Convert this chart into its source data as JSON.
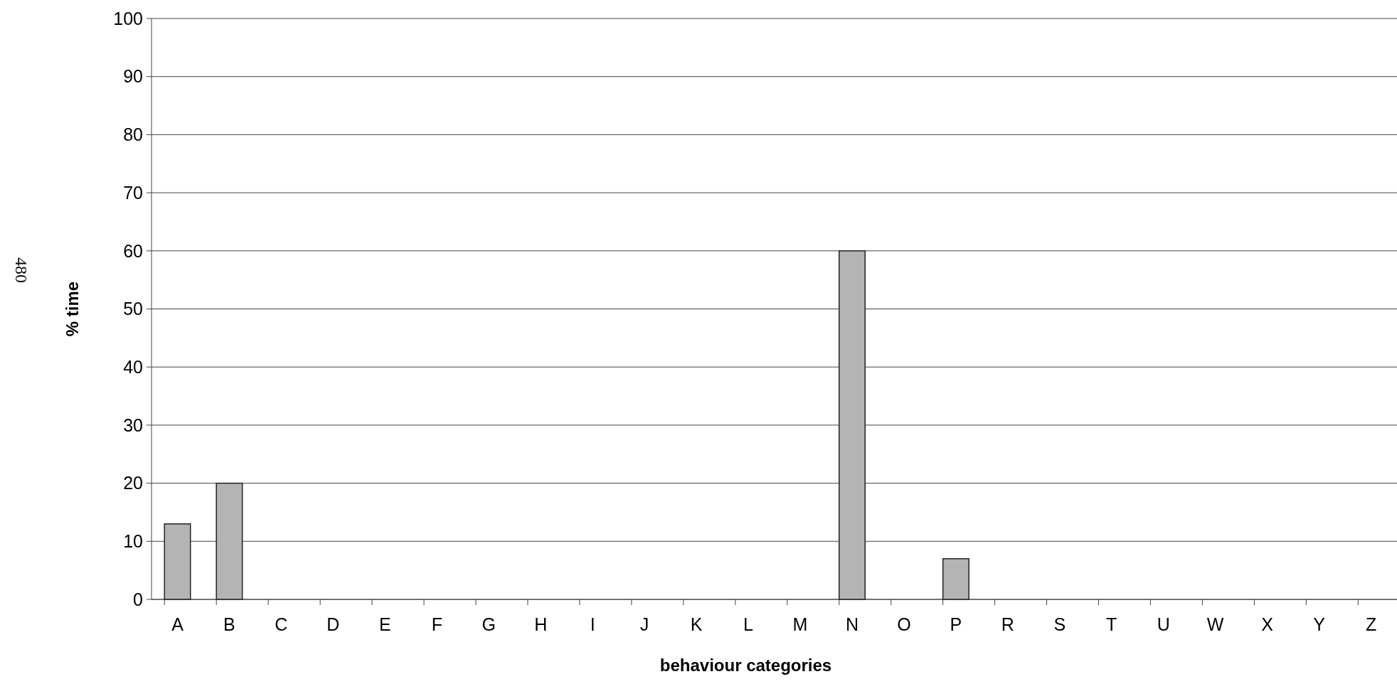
{
  "chart_data": {
    "type": "bar",
    "xlabel": "behaviour categories",
    "ylabel": "% time",
    "categories": [
      "A",
      "B",
      "C",
      "D",
      "E",
      "F",
      "G",
      "H",
      "I",
      "J",
      "K",
      "L",
      "M",
      "N",
      "O",
      "P",
      "R",
      "S",
      "T",
      "U",
      "W",
      "X",
      "Y",
      "Z"
    ],
    "values": [
      13,
      20,
      0,
      0,
      0,
      0,
      0,
      0,
      0,
      0,
      0,
      0,
      0,
      60,
      0,
      7,
      0,
      0,
      0,
      0,
      0,
      0,
      0,
      0
    ],
    "color": "#b4b4b4",
    "ylim": [
      0,
      100
    ],
    "yticks": [
      0,
      10,
      20,
      30,
      40,
      50,
      60,
      70,
      80,
      90,
      100
    ],
    "grid": "y",
    "annotations": [
      "480"
    ]
  }
}
